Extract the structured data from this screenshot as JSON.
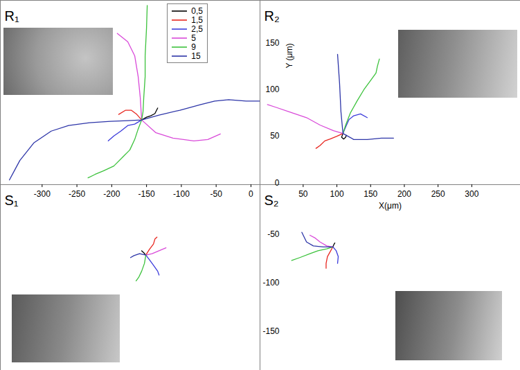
{
  "chart_data": [
    {
      "type": "line",
      "title": "R₁",
      "xlim": [
        -360,
        13
      ],
      "xticks": [
        -300,
        -250,
        -200,
        -150,
        -100,
        -50,
        0
      ],
      "ylim": [
        -2,
        196
      ],
      "tick_labels": "x",
      "legend": "top-right",
      "series": [
        {
          "name": "0,5",
          "color": "#000000",
          "x": [
            -157,
            -150,
            -144,
            -138,
            -134
          ],
          "values": [
            67.5,
            70.5,
            72,
            74.3,
            80.3
          ]
        },
        {
          "name": "1,5",
          "color": "#e8261f",
          "x": [
            -157,
            -164,
            -172,
            -180,
            -190
          ],
          "values": [
            67.5,
            73.5,
            78,
            78,
            73.5
          ]
        },
        {
          "name": "2,5",
          "color": "#3b3bdb",
          "x": [
            -157,
            -167,
            -177,
            -187,
            -197,
            -205
          ],
          "values": [
            67.5,
            63,
            61.5,
            55.5,
            50.3,
            45
          ]
        },
        {
          "name": "5",
          "color": "#d94ad9",
          "x": [
            -192,
            -177,
            -167,
            -162,
            -159,
            -157,
            -137,
            -112,
            -82,
            -62,
            -44
          ],
          "values": [
            160.5,
            151.5,
            136.5,
            114,
            91.5,
            67.5,
            54,
            48,
            45,
            46.5,
            52.5
          ]
        },
        {
          "name": "9",
          "color": "#3cc23c",
          "x": [
            -149,
            -150,
            -152,
            -152,
            -154,
            -155,
            -157,
            -162,
            -167,
            -174,
            -184,
            -197,
            -212,
            -224,
            -234
          ],
          "values": [
            190.5,
            166.5,
            136.5,
            114,
            91.5,
            76.5,
            67.5,
            57.8,
            46.5,
            35.3,
            27.8,
            18,
            12.8,
            9,
            5.3
          ]
        },
        {
          "name": "15",
          "color": "#2d35a8",
          "x": [
            -347,
            -332,
            -312,
            -287,
            -262,
            -232,
            -202,
            -177,
            -157,
            -132,
            -102,
            -72,
            -52,
            -32,
            -7,
            13
          ],
          "values": [
            3,
            24,
            42.8,
            55.5,
            61.5,
            64.5,
            66,
            66.8,
            67.5,
            72.8,
            78,
            84,
            87.8,
            89.3,
            87.8,
            87.8
          ]
        }
      ]
    },
    {
      "type": "line",
      "title": "R₂",
      "xlabel": "X(μm)",
      "ylabel": "Y (μm)",
      "xlim": [
        -14,
        372
      ],
      "xticks": [
        50,
        100,
        150,
        200,
        250,
        300
      ],
      "ylim": [
        -2,
        196
      ],
      "yticks": [
        0,
        50,
        100,
        150
      ],
      "series": [
        {
          "name": "0,5",
          "color": "#000000",
          "x": [
            109,
            107,
            110,
            113,
            114
          ],
          "values": [
            53,
            49,
            47,
            49,
            51
          ]
        },
        {
          "name": "1,5",
          "color": "#e8261f",
          "x": [
            109,
            100,
            90,
            82,
            75,
            69
          ],
          "values": [
            53,
            50,
            47,
            45,
            40,
            37
          ]
        },
        {
          "name": "2,5",
          "color": "#3b3bdb",
          "x": [
            109,
            113,
            118,
            125,
            135,
            145
          ],
          "values": [
            53,
            60,
            68,
            72,
            74,
            70
          ]
        },
        {
          "name": "5",
          "color": "#d94ad9",
          "x": [
            109,
            95,
            75,
            55,
            30,
            10,
            -3
          ],
          "values": [
            53,
            56,
            62,
            70,
            76,
            81,
            84
          ]
        },
        {
          "name": "9",
          "color": "#3cc23c",
          "x": [
            109,
            113,
            120,
            130,
            140,
            150,
            158,
            160,
            163
          ],
          "values": [
            53,
            62,
            75,
            88,
            100,
            110,
            118,
            125,
            133
          ]
        },
        {
          "name": "15",
          "color": "#2d35a8",
          "x": [
            101,
            104,
            106,
            109,
            125,
            145,
            166,
            184
          ],
          "values": [
            138,
            106.5,
            76.5,
            53,
            46.5,
            46.5,
            48,
            48
          ]
        }
      ]
    },
    {
      "type": "line",
      "title": "S₁",
      "xlim": [
        -360,
        13
      ],
      "ylim": [
        -190,
        1
      ],
      "tick_labels": false,
      "series": [
        {
          "name": "0,5",
          "color": "#000000",
          "x": [
            -157,
            -154,
            -151
          ],
          "values": [
            -67,
            -69,
            -71.4
          ]
        },
        {
          "name": "1,5",
          "color": "#e8261f",
          "x": [
            -151,
            -146,
            -140,
            -138,
            -135
          ],
          "values": [
            -71.4,
            -65.7,
            -60,
            -55,
            -53
          ]
        },
        {
          "name": "2,5",
          "color": "#3b3bdb",
          "x": [
            -151,
            -146,
            -140,
            -134,
            -132
          ],
          "values": [
            -71.4,
            -76,
            -82,
            -88,
            -92
          ]
        },
        {
          "name": "5",
          "color": "#d94ad9",
          "x": [
            -151,
            -142,
            -132,
            -122
          ],
          "values": [
            -71.4,
            -70,
            -67,
            -64
          ]
        },
        {
          "name": "9",
          "color": "#3cc23c",
          "x": [
            -151,
            -153,
            -157,
            -161,
            -165
          ],
          "values": [
            -71.4,
            -80,
            -88,
            -94,
            -98
          ]
        },
        {
          "name": "15",
          "color": "#2d35a8",
          "x": [
            -151,
            -160,
            -168,
            -173
          ],
          "values": [
            -71.4,
            -70,
            -72,
            -74
          ]
        }
      ]
    },
    {
      "type": "line",
      "title": "S₂",
      "xlim": [
        -14,
        372
      ],
      "ylim": [
        -190,
        1
      ],
      "yticks": [
        -150,
        -100,
        -50
      ],
      "tick_labels": "y",
      "series": [
        {
          "name": "0,5",
          "color": "#000000",
          "x": [
            94,
            96,
            97
          ],
          "values": [
            -63,
            -60,
            -59
          ]
        },
        {
          "name": "1,5",
          "color": "#e8261f",
          "x": [
            94,
            90,
            86,
            84,
            84
          ],
          "values": [
            -63,
            -68,
            -73,
            -80,
            -85
          ]
        },
        {
          "name": "2,5",
          "color": "#3b3bdb",
          "x": [
            94,
            99,
            102,
            101
          ],
          "values": [
            -63,
            -67,
            -73,
            -80
          ]
        },
        {
          "name": "5",
          "color": "#d94ad9",
          "x": [
            94,
            85,
            75,
            68,
            60
          ],
          "values": [
            -63,
            -62,
            -58,
            -54,
            -51
          ]
        },
        {
          "name": "9",
          "color": "#3cc23c",
          "x": [
            94,
            85,
            72,
            60,
            45,
            33
          ],
          "values": [
            -63,
            -65,
            -67,
            -70,
            -74,
            -77
          ]
        },
        {
          "name": "15",
          "color": "#2d35a8",
          "x": [
            94,
            80,
            65,
            55,
            48
          ],
          "values": [
            -63,
            -63,
            -62,
            -58,
            -48
          ]
        }
      ]
    }
  ]
}
